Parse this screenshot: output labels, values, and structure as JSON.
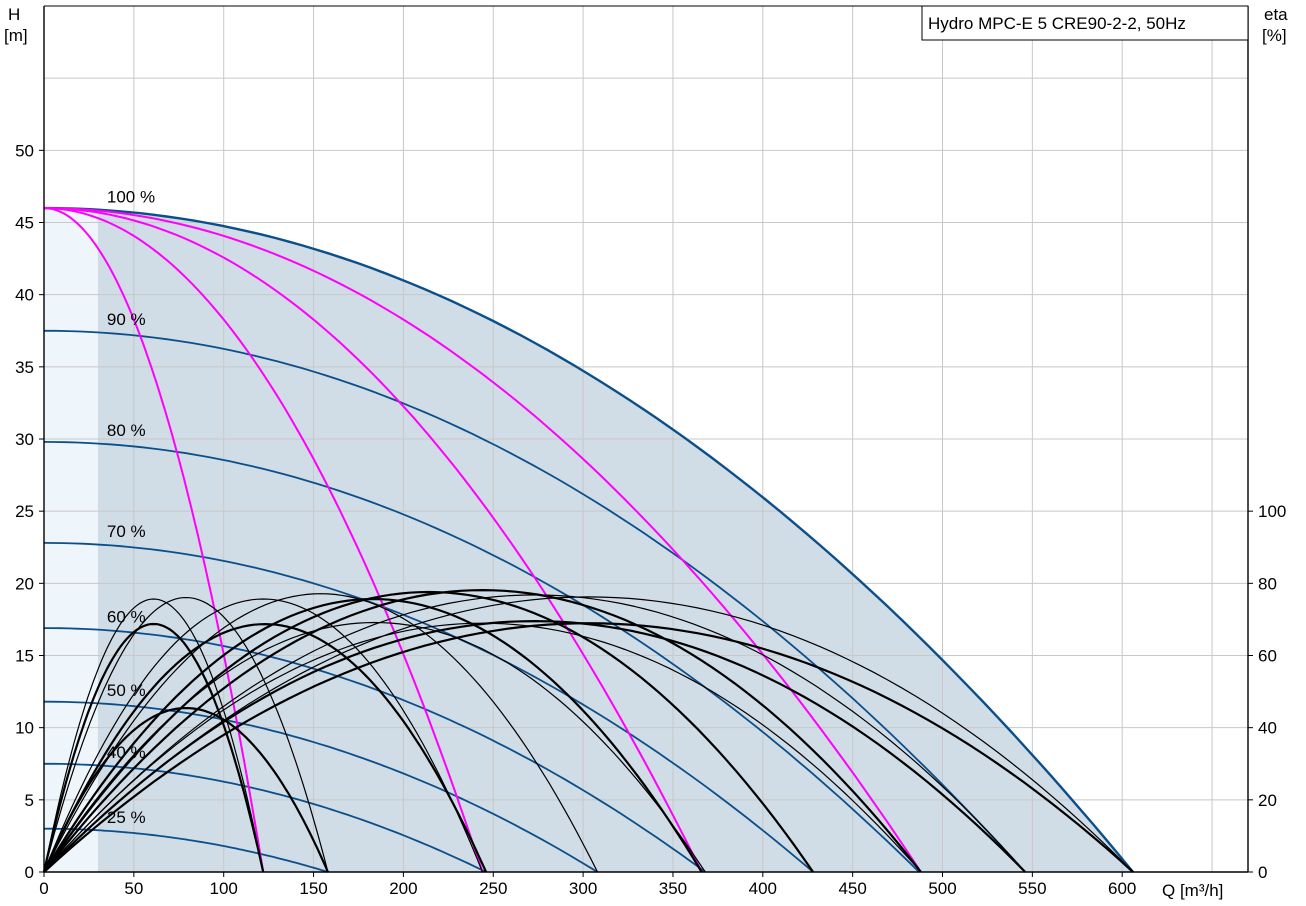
{
  "chart_data": {
    "type": "line",
    "title": "Hydro MPC-E 5 CRE90-2-2, 50Hz",
    "xlabel": "Q [m³/h]",
    "ylabel_left": [
      "H",
      "[m]"
    ],
    "ylabel_right": [
      "eta",
      "[%]"
    ],
    "xlim": [
      0,
      670
    ],
    "ylim_left": [
      0,
      60
    ],
    "xticks": [
      0,
      50,
      100,
      150,
      200,
      250,
      300,
      350,
      400,
      450,
      500,
      550,
      600
    ],
    "yticks_left": [
      0,
      5,
      10,
      15,
      20,
      25,
      30,
      35,
      40,
      45,
      50
    ],
    "yticks_right": [
      0,
      20,
      40,
      60,
      80,
      100
    ],
    "eta_scale": {
      "eta_max": 100,
      "h_at_eta_max": 25
    },
    "grid": true,
    "speed_curves": [
      {
        "label": "100 %",
        "H0": 46.0,
        "Qmax": 606
      },
      {
        "label": "90 %",
        "H0": 37.5,
        "Qmax": 546
      },
      {
        "label": "80 %",
        "H0": 29.8,
        "Qmax": 487
      },
      {
        "label": "70 %",
        "H0": 22.8,
        "Qmax": 428
      },
      {
        "label": "60 %",
        "H0": 16.9,
        "Qmax": 368
      },
      {
        "label": "50 %",
        "H0": 11.8,
        "Qmax": 308
      },
      {
        "label": "40 %",
        "H0": 7.5,
        "Qmax": 246
      },
      {
        "label": "25 %",
        "H0": 3.0,
        "Qmax": 158
      }
    ],
    "pump_count_curves": [
      {
        "pumps": 1,
        "Qmax": 122
      },
      {
        "pumps": 2,
        "Qmax": 244
      },
      {
        "pumps": 3,
        "Qmax": 366
      },
      {
        "pumps": 4,
        "Qmax": 488
      }
    ],
    "efficiency_curves": [
      {
        "Qpeak": 70,
        "eta_peak": 74,
        "Qend": 122
      },
      {
        "Qpeak": 72,
        "eta_peak": 66.5,
        "Qend": 122
      },
      {
        "Qpeak": 92,
        "eta_peak": 74,
        "Qend": 158
      },
      {
        "Qpeak": 93,
        "eta_peak": 44,
        "Qend": 158
      },
      {
        "Qpeak": 140,
        "eta_peak": 74,
        "Qend": 244
      },
      {
        "Qpeak": 145,
        "eta_peak": 66.5,
        "Qend": 246
      },
      {
        "Qpeak": 185,
        "eta_peak": 74,
        "Qend": 308
      },
      {
        "Qpeak": 210,
        "eta_peak": 74,
        "Qend": 366
      },
      {
        "Qpeak": 220,
        "eta_peak": 66.5,
        "Qend": 368
      },
      {
        "Qpeak": 260,
        "eta_peak": 74,
        "Qend": 428
      },
      {
        "Qpeak": 290,
        "eta_peak": 66.5,
        "Qend": 488
      },
      {
        "Qpeak": 300,
        "eta_peak": 74,
        "Qend": 488
      },
      {
        "Qpeak": 325,
        "eta_peak": 74,
        "Qend": 546
      },
      {
        "Qpeak": 330,
        "eta_peak": 66.5,
        "Qend": 546
      },
      {
        "Qpeak": 355,
        "eta_peak": 74,
        "Qend": 606
      },
      {
        "Qpeak": 360,
        "eta_peak": 66.5,
        "Qend": 606
      }
    ],
    "colors": {
      "speed_curve": "#0b4f8a",
      "pump_curve": "#ff00ff",
      "efficiency_curve": "#000000",
      "area_dark": "#d0dce6",
      "area_light": "#eef5fb",
      "grid": "#c8c8c8"
    }
  }
}
